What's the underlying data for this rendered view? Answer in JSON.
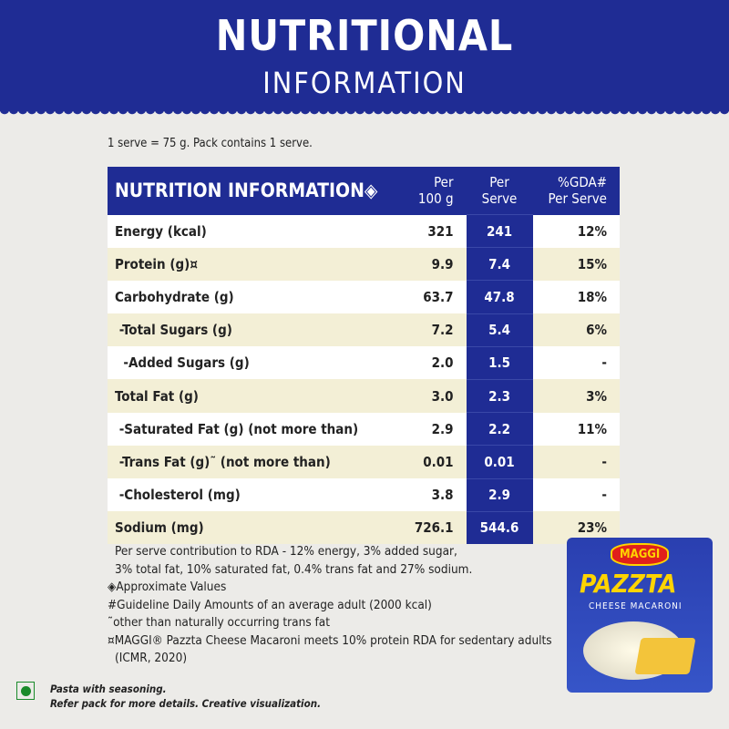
{
  "header": {
    "title": "NUTRITIONAL",
    "subtitle": "INFORMATION"
  },
  "serve_info": "1 serve = 75 g. Pack contains 1 serve.",
  "table": {
    "headers": [
      "NUTRITION INFORMATION◈",
      "Per\n100 g",
      "Per\nServe",
      "%GDA#\nPer Serve"
    ],
    "rows": [
      {
        "label": "Energy (kcal)",
        "per100": "321",
        "perServe": "241",
        "gda": "12%"
      },
      {
        "label": "Protein (g)¤",
        "per100": "9.9",
        "perServe": "7.4",
        "gda": "15%"
      },
      {
        "label": "Carbohydrate (g)",
        "per100": "63.7",
        "perServe": "47.8",
        "gda": "18%"
      },
      {
        "label": " -Total Sugars (g)",
        "per100": "7.2",
        "perServe": "5.4",
        "gda": "6%"
      },
      {
        "label": "  -Added Sugars (g)",
        "per100": "2.0",
        "perServe": "1.5",
        "gda": "-"
      },
      {
        "label": "Total Fat (g)",
        "per100": "3.0",
        "perServe": "2.3",
        "gda": "3%"
      },
      {
        "label": " -Saturated Fat (g) (not more than)",
        "per100": "2.9",
        "perServe": "2.2",
        "gda": "11%"
      },
      {
        "label": " -Trans Fat (g)˜ (not more than)",
        "per100": "0.01",
        "perServe": "0.01",
        "gda": "-"
      },
      {
        "label": " -Cholesterol (mg)",
        "per100": "3.8",
        "perServe": "2.9",
        "gda": "-"
      },
      {
        "label": "Sodium (mg)",
        "per100": "726.1",
        "perServe": "544.6",
        "gda": "23%"
      }
    ]
  },
  "notes": [
    "Per serve contribution to RDA - 12% energy, 3% added sugar,",
    "3% total fat, 10% saturated fat, 0.4% trans fat and 27% sodium.",
    "◈Approximate Values",
    "#Guideline Daily Amounts of an average adult (2000 kcal)",
    "˜other than naturally occurring trans fat",
    "¤MAGGI® Pazzta Cheese Macaroni meets 10% protein RDA for sedentary adults",
    "(ICMR, 2020)"
  ],
  "footer": {
    "line1": "Pasta with seasoning.",
    "line2": "Refer pack for more details. Creative visualization."
  },
  "pack": {
    "brand": "MAGGI",
    "name": "PAZZTA",
    "variant": "CHEESE MACARONI"
  },
  "colors": {
    "brand_blue": "#1f2c94",
    "cream": "#f3efd6",
    "veg_green": "#1a8a2a"
  }
}
